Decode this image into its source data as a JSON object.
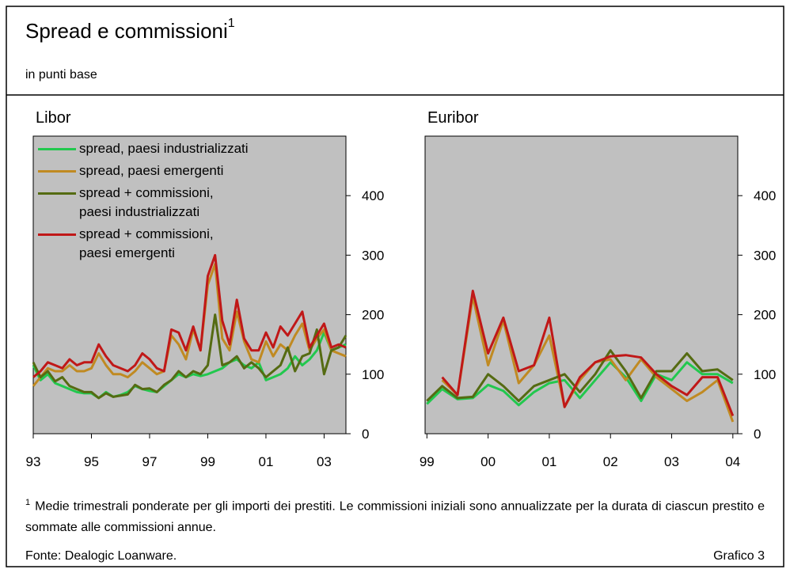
{
  "title": "Spread e commissioni",
  "title_note": "1",
  "subtitle": "in punti base",
  "footnote": {
    "marker": "1",
    "text": "Medie trimestrali ponderate per gli importi dei prestiti. Le commissioni iniziali sono annualizzate per la durata di ciascun prestito e sommate alle commissioni annue."
  },
  "source": "Fonte: Dealogic Loanware.",
  "figure_label": "Grafico 3",
  "chart_data": [
    {
      "type": "line",
      "title": "Libor",
      "legend": "upper left",
      "x": [
        1993,
        1993.25,
        1993.5,
        1993.75,
        1994,
        1994.25,
        1994.5,
        1994.75,
        1995,
        1995.25,
        1995.5,
        1995.75,
        1996,
        1996.25,
        1996.5,
        1996.75,
        1997,
        1997.25,
        1997.5,
        1997.75,
        1998,
        1998.25,
        1998.5,
        1998.75,
        1999,
        1999.25,
        1999.5,
        1999.75,
        2000,
        2000.25,
        2000.5,
        2000.75,
        2001,
        2001.25,
        2001.5,
        2001.75,
        2002,
        2002.25,
        2002.5,
        2002.75,
        2003,
        2003.25,
        2003.5,
        2003.75
      ],
      "xlim": [
        1993,
        2003.75
      ],
      "xticks": [
        {
          "value": 1993,
          "label": "93"
        },
        {
          "value": 1995,
          "label": "95"
        },
        {
          "value": 1997,
          "label": "97"
        },
        {
          "value": 1999,
          "label": "99"
        },
        {
          "value": 2001,
          "label": "01"
        },
        {
          "value": 2003,
          "label": "03"
        }
      ],
      "ylim": [
        0,
        500
      ],
      "yticks": [
        0,
        100,
        200,
        300,
        400
      ],
      "series": [
        {
          "name": "spread, paesi industrializzati",
          "color": "#22c84e",
          "values": [
            115,
            90,
            100,
            85,
            80,
            75,
            70,
            68,
            68,
            60,
            70,
            62,
            65,
            70,
            80,
            75,
            72,
            70,
            80,
            90,
            100,
            95,
            100,
            97,
            100,
            105,
            110,
            120,
            125,
            115,
            110,
            120,
            90,
            95,
            100,
            110,
            130,
            115,
            125,
            140,
            170,
            140,
            145,
            150
          ]
        },
        {
          "name": "spread, paesi emergenti",
          "color": "#c08a22",
          "values": [
            80,
            95,
            110,
            105,
            105,
            115,
            105,
            105,
            110,
            135,
            115,
            100,
            100,
            95,
            105,
            120,
            110,
            100,
            105,
            165,
            150,
            125,
            175,
            140,
            250,
            285,
            160,
            140,
            205,
            155,
            125,
            120,
            155,
            130,
            150,
            140,
            165,
            185,
            140,
            160,
            175,
            140,
            135,
            130
          ]
        },
        {
          "name": "spread + commissioni,\npaesi industrializzati",
          "color": "#556b12",
          "values": [
            120,
            95,
            105,
            88,
            95,
            80,
            75,
            70,
            70,
            60,
            68,
            62,
            64,
            66,
            82,
            75,
            76,
            70,
            82,
            90,
            105,
            95,
            105,
            100,
            115,
            200,
            115,
            120,
            130,
            110,
            120,
            110,
            95,
            105,
            115,
            145,
            105,
            130,
            135,
            175,
            100,
            140,
            145,
            165
          ]
        },
        {
          "name": "spread + commissioni,\npaesi emergenti",
          "color": "#c01818",
          "values": [
            95,
            105,
            120,
            115,
            110,
            125,
            115,
            120,
            120,
            150,
            130,
            115,
            110,
            105,
            115,
            135,
            125,
            110,
            105,
            175,
            170,
            140,
            180,
            140,
            265,
            300,
            190,
            150,
            225,
            160,
            140,
            140,
            170,
            145,
            180,
            165,
            185,
            205,
            145,
            165,
            185,
            145,
            150,
            145
          ]
        }
      ]
    },
    {
      "type": "line",
      "title": "Euribor",
      "x": [
        1999,
        1999.25,
        1999.5,
        1999.75,
        2000,
        2000.25,
        2000.5,
        2000.75,
        2001,
        2001.25,
        2001.5,
        2001.75,
        2002,
        2002.25,
        2002.5,
        2002.75,
        2003,
        2003.25,
        2003.5,
        2003.75,
        2004
      ],
      "xlim": [
        1998.97,
        2004.08
      ],
      "xticks": [
        {
          "value": 1999,
          "label": "99"
        },
        {
          "value": 2000,
          "label": "00"
        },
        {
          "value": 2001,
          "label": "01"
        },
        {
          "value": 2002,
          "label": "02"
        },
        {
          "value": 2003,
          "label": "03"
        },
        {
          "value": 2004,
          "label": "04"
        }
      ],
      "ylim": [
        0,
        500
      ],
      "yticks": [
        0,
        100,
        200,
        300,
        400
      ],
      "series": [
        {
          "name": "spread, paesi industrializzati",
          "color": "#22c84e",
          "values": [
            50,
            75,
            58,
            60,
            82,
            72,
            48,
            70,
            85,
            90,
            60,
            90,
            120,
            95,
            55,
            100,
            90,
            120,
            100,
            100,
            85
          ]
        },
        {
          "name": "spread, paesi emergenti",
          "color": "#c08a22",
          "values": [
            null,
            90,
            65,
            230,
            115,
            190,
            85,
            115,
            165,
            45,
            90,
            120,
            125,
            90,
            125,
            95,
            75,
            55,
            70,
            90,
            20
          ]
        },
        {
          "name": "spread + commissioni,\npaesi industrializzati",
          "color": "#556b12",
          "values": [
            55,
            80,
            60,
            62,
            100,
            80,
            55,
            80,
            90,
            100,
            70,
            100,
            140,
            105,
            60,
            105,
            105,
            135,
            105,
            108,
            90
          ]
        },
        {
          "name": "spread + commissioni,\npaesi emergenti",
          "color": "#c01818",
          "values": [
            null,
            95,
            65,
            240,
            135,
            195,
            105,
            115,
            195,
            45,
            95,
            120,
            130,
            132,
            128,
            100,
            80,
            65,
            95,
            95,
            30
          ]
        }
      ]
    }
  ]
}
